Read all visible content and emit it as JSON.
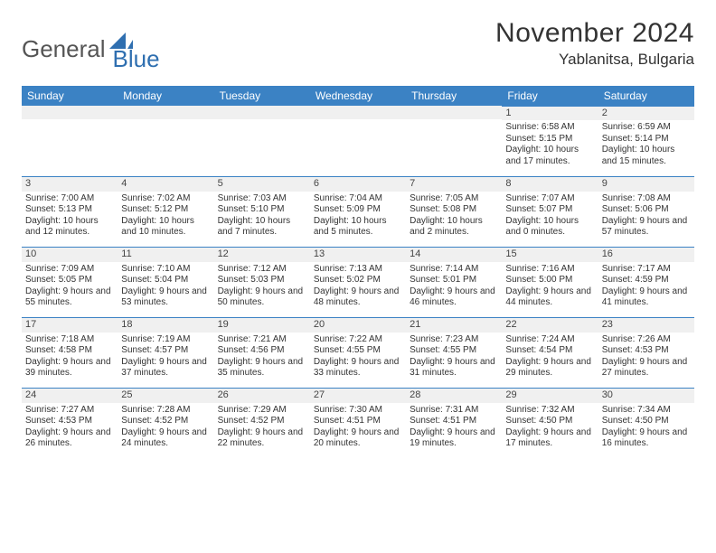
{
  "logo": {
    "general": "General",
    "blue": "Blue"
  },
  "title": "November 2024",
  "location": "Yablanitsa, Bulgaria",
  "header_bg": "#3b82c4",
  "header_fg": "#ffffff",
  "accent": "#3b82c4",
  "shade_bg": "#f0f0f0",
  "day_headers": [
    "Sunday",
    "Monday",
    "Tuesday",
    "Wednesday",
    "Thursday",
    "Friday",
    "Saturday"
  ],
  "weeks": [
    [
      {
        "n": "",
        "sunrise": "",
        "sunset": "",
        "daylight": ""
      },
      {
        "n": "",
        "sunrise": "",
        "sunset": "",
        "daylight": ""
      },
      {
        "n": "",
        "sunrise": "",
        "sunset": "",
        "daylight": ""
      },
      {
        "n": "",
        "sunrise": "",
        "sunset": "",
        "daylight": ""
      },
      {
        "n": "",
        "sunrise": "",
        "sunset": "",
        "daylight": ""
      },
      {
        "n": "1",
        "sunrise": "Sunrise: 6:58 AM",
        "sunset": "Sunset: 5:15 PM",
        "daylight": "Daylight: 10 hours and 17 minutes."
      },
      {
        "n": "2",
        "sunrise": "Sunrise: 6:59 AM",
        "sunset": "Sunset: 5:14 PM",
        "daylight": "Daylight: 10 hours and 15 minutes."
      }
    ],
    [
      {
        "n": "3",
        "sunrise": "Sunrise: 7:00 AM",
        "sunset": "Sunset: 5:13 PM",
        "daylight": "Daylight: 10 hours and 12 minutes."
      },
      {
        "n": "4",
        "sunrise": "Sunrise: 7:02 AM",
        "sunset": "Sunset: 5:12 PM",
        "daylight": "Daylight: 10 hours and 10 minutes."
      },
      {
        "n": "5",
        "sunrise": "Sunrise: 7:03 AM",
        "sunset": "Sunset: 5:10 PM",
        "daylight": "Daylight: 10 hours and 7 minutes."
      },
      {
        "n": "6",
        "sunrise": "Sunrise: 7:04 AM",
        "sunset": "Sunset: 5:09 PM",
        "daylight": "Daylight: 10 hours and 5 minutes."
      },
      {
        "n": "7",
        "sunrise": "Sunrise: 7:05 AM",
        "sunset": "Sunset: 5:08 PM",
        "daylight": "Daylight: 10 hours and 2 minutes."
      },
      {
        "n": "8",
        "sunrise": "Sunrise: 7:07 AM",
        "sunset": "Sunset: 5:07 PM",
        "daylight": "Daylight: 10 hours and 0 minutes."
      },
      {
        "n": "9",
        "sunrise": "Sunrise: 7:08 AM",
        "sunset": "Sunset: 5:06 PM",
        "daylight": "Daylight: 9 hours and 57 minutes."
      }
    ],
    [
      {
        "n": "10",
        "sunrise": "Sunrise: 7:09 AM",
        "sunset": "Sunset: 5:05 PM",
        "daylight": "Daylight: 9 hours and 55 minutes."
      },
      {
        "n": "11",
        "sunrise": "Sunrise: 7:10 AM",
        "sunset": "Sunset: 5:04 PM",
        "daylight": "Daylight: 9 hours and 53 minutes."
      },
      {
        "n": "12",
        "sunrise": "Sunrise: 7:12 AM",
        "sunset": "Sunset: 5:03 PM",
        "daylight": "Daylight: 9 hours and 50 minutes."
      },
      {
        "n": "13",
        "sunrise": "Sunrise: 7:13 AM",
        "sunset": "Sunset: 5:02 PM",
        "daylight": "Daylight: 9 hours and 48 minutes."
      },
      {
        "n": "14",
        "sunrise": "Sunrise: 7:14 AM",
        "sunset": "Sunset: 5:01 PM",
        "daylight": "Daylight: 9 hours and 46 minutes."
      },
      {
        "n": "15",
        "sunrise": "Sunrise: 7:16 AM",
        "sunset": "Sunset: 5:00 PM",
        "daylight": "Daylight: 9 hours and 44 minutes."
      },
      {
        "n": "16",
        "sunrise": "Sunrise: 7:17 AM",
        "sunset": "Sunset: 4:59 PM",
        "daylight": "Daylight: 9 hours and 41 minutes."
      }
    ],
    [
      {
        "n": "17",
        "sunrise": "Sunrise: 7:18 AM",
        "sunset": "Sunset: 4:58 PM",
        "daylight": "Daylight: 9 hours and 39 minutes."
      },
      {
        "n": "18",
        "sunrise": "Sunrise: 7:19 AM",
        "sunset": "Sunset: 4:57 PM",
        "daylight": "Daylight: 9 hours and 37 minutes."
      },
      {
        "n": "19",
        "sunrise": "Sunrise: 7:21 AM",
        "sunset": "Sunset: 4:56 PM",
        "daylight": "Daylight: 9 hours and 35 minutes."
      },
      {
        "n": "20",
        "sunrise": "Sunrise: 7:22 AM",
        "sunset": "Sunset: 4:55 PM",
        "daylight": "Daylight: 9 hours and 33 minutes."
      },
      {
        "n": "21",
        "sunrise": "Sunrise: 7:23 AM",
        "sunset": "Sunset: 4:55 PM",
        "daylight": "Daylight: 9 hours and 31 minutes."
      },
      {
        "n": "22",
        "sunrise": "Sunrise: 7:24 AM",
        "sunset": "Sunset: 4:54 PM",
        "daylight": "Daylight: 9 hours and 29 minutes."
      },
      {
        "n": "23",
        "sunrise": "Sunrise: 7:26 AM",
        "sunset": "Sunset: 4:53 PM",
        "daylight": "Daylight: 9 hours and 27 minutes."
      }
    ],
    [
      {
        "n": "24",
        "sunrise": "Sunrise: 7:27 AM",
        "sunset": "Sunset: 4:53 PM",
        "daylight": "Daylight: 9 hours and 26 minutes."
      },
      {
        "n": "25",
        "sunrise": "Sunrise: 7:28 AM",
        "sunset": "Sunset: 4:52 PM",
        "daylight": "Daylight: 9 hours and 24 minutes."
      },
      {
        "n": "26",
        "sunrise": "Sunrise: 7:29 AM",
        "sunset": "Sunset: 4:52 PM",
        "daylight": "Daylight: 9 hours and 22 minutes."
      },
      {
        "n": "27",
        "sunrise": "Sunrise: 7:30 AM",
        "sunset": "Sunset: 4:51 PM",
        "daylight": "Daylight: 9 hours and 20 minutes."
      },
      {
        "n": "28",
        "sunrise": "Sunrise: 7:31 AM",
        "sunset": "Sunset: 4:51 PM",
        "daylight": "Daylight: 9 hours and 19 minutes."
      },
      {
        "n": "29",
        "sunrise": "Sunrise: 7:32 AM",
        "sunset": "Sunset: 4:50 PM",
        "daylight": "Daylight: 9 hours and 17 minutes."
      },
      {
        "n": "30",
        "sunrise": "Sunrise: 7:34 AM",
        "sunset": "Sunset: 4:50 PM",
        "daylight": "Daylight: 9 hours and 16 minutes."
      }
    ]
  ]
}
